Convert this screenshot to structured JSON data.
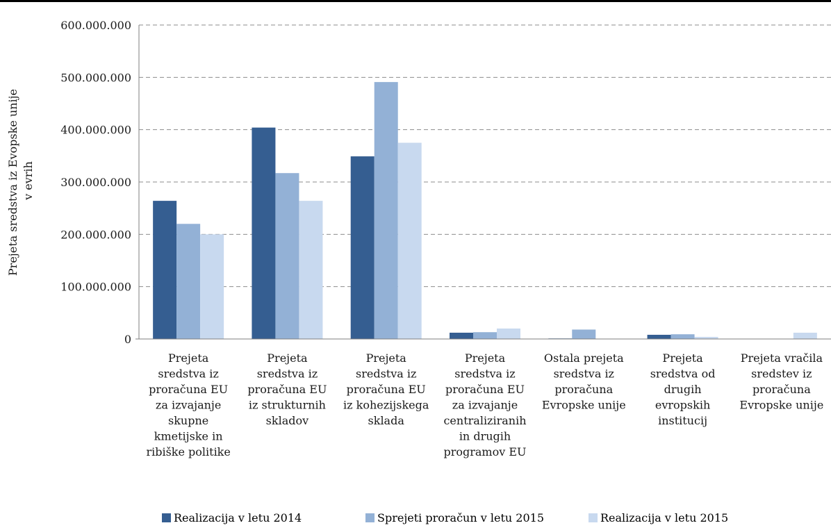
{
  "chart_data": {
    "type": "bar",
    "title": "",
    "ylabel_lines": [
      "Prejeta sredstva iz Evopske unije",
      "v evrih"
    ],
    "xlabel": "",
    "ylim": [
      0,
      600000000
    ],
    "yticks": [
      0,
      100000000,
      200000000,
      300000000,
      400000000,
      500000000,
      600000000
    ],
    "ytick_labels": [
      "0",
      "100.000.000",
      "200.000.000",
      "300.000.000",
      "400.000.000",
      "500.000.000",
      "600.000.000"
    ],
    "grid": "horizontal dashed",
    "legend_position": "bottom",
    "categories": [
      [
        "Prejeta",
        "sredstva iz",
        "proračuna EU",
        "za izvajanje",
        "skupne",
        "kmetijske in",
        "ribiške politike"
      ],
      [
        "Prejeta",
        "sredstva iz",
        "proračuna EU",
        "iz strukturnih",
        "skladov"
      ],
      [
        "Prejeta",
        "sredstva iz",
        "proračuna EU",
        "iz kohezijskega",
        "sklada"
      ],
      [
        "Prejeta",
        "sredstva iz",
        "proračuna EU",
        "za izvajanje",
        "centraliziranih",
        "in drugih",
        "programov EU"
      ],
      [
        "Ostala prejeta",
        "sredstva iz",
        "proračuna",
        "Evropske unije"
      ],
      [
        "Prejeta",
        "sredstva od",
        "drugih",
        "evropskih",
        "institucij"
      ],
      [
        "Prejeta vračila",
        "sredstev iz",
        "proračuna",
        "Evropske unije"
      ]
    ],
    "series": [
      {
        "name": "Realizacija v letu 2014",
        "color": "#355e91",
        "values": [
          264000000,
          404000000,
          349000000,
          12000000,
          1000000,
          8000000,
          0
        ]
      },
      {
        "name": "Sprejeti proračun v letu 2015",
        "color": "#93b1d6",
        "values": [
          220000000,
          317000000,
          491000000,
          13000000,
          18000000,
          9000000,
          0
        ]
      },
      {
        "name": "Realizacija v letu 2015",
        "color": "#c8d9ef",
        "values": [
          200000000,
          264000000,
          375000000,
          20000000,
          0,
          4000000,
          12000000
        ]
      }
    ]
  }
}
